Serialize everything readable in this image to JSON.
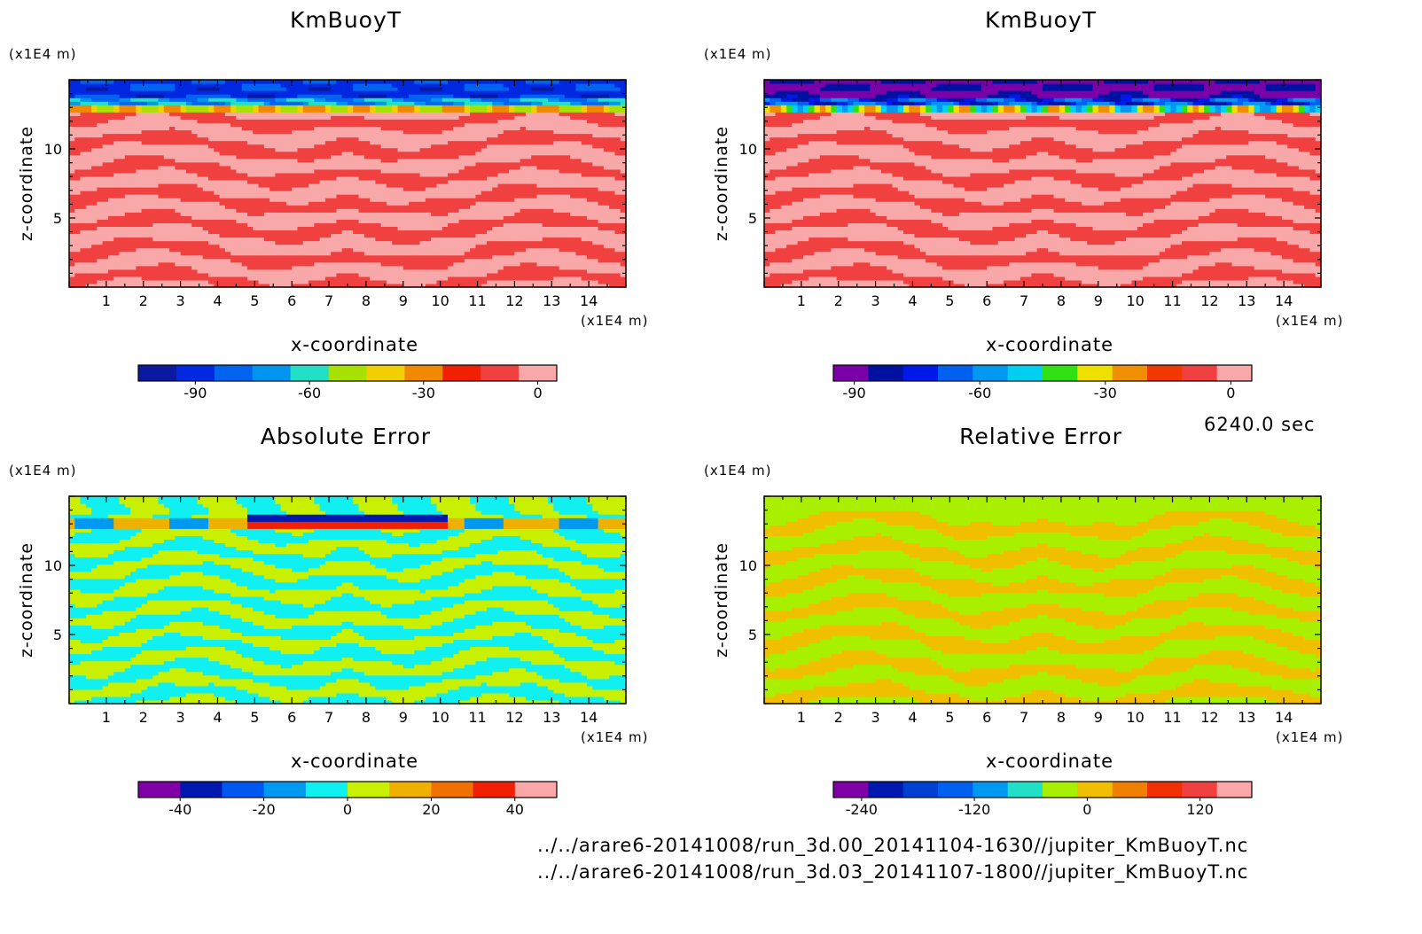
{
  "chart_data": [
    {
      "type": "heatmap",
      "title": "KmBuoyT",
      "xlabel": "x-coordinate",
      "ylabel": "z-coordinate",
      "x_unit": "(x1E4 m)",
      "y_unit": "(x1E4 m)",
      "xlim": [
        0,
        15
      ],
      "ylim": [
        0,
        15
      ],
      "x_ticks": [
        1,
        2,
        3,
        4,
        5,
        6,
        7,
        8,
        9,
        10,
        11,
        12,
        13,
        14
      ],
      "y_ticks": [
        5,
        10
      ],
      "pattern": "model",
      "colorbar": {
        "min": -105,
        "max": 5,
        "colors": [
          "#0a1aa0",
          "#0028e0",
          "#0064f0",
          "#0096f0",
          "#20e0c8",
          "#a8e000",
          "#f0d000",
          "#f08800",
          "#f02000",
          "#f04040",
          "#f8a8a8"
        ],
        "ticks": [
          -90,
          -60,
          -30,
          0
        ]
      }
    },
    {
      "type": "heatmap",
      "title": "KmBuoyT",
      "xlabel": "x-coordinate",
      "ylabel": "z-coordinate",
      "x_unit": "(x1E4 m)",
      "y_unit": "(x1E4 m)",
      "xlim": [
        0,
        15
      ],
      "ylim": [
        0,
        15
      ],
      "x_ticks": [
        1,
        2,
        3,
        4,
        5,
        6,
        7,
        8,
        9,
        10,
        11,
        12,
        13,
        14
      ],
      "y_ticks": [
        5,
        10
      ],
      "pattern": "model",
      "colorbar": {
        "min": -95,
        "max": 5,
        "colors": [
          "#7a00a8",
          "#0010a0",
          "#0018e8",
          "#0060f0",
          "#0098f0",
          "#00d0f0",
          "#30e010",
          "#f0e000",
          "#f09000",
          "#f03800",
          "#f04040",
          "#f8a8a8"
        ],
        "ticks": [
          -90,
          -60,
          -30,
          0
        ]
      }
    },
    {
      "type": "heatmap",
      "title": "Absolute Error",
      "xlabel": "x-coordinate",
      "ylabel": "z-coordinate",
      "x_unit": "(x1E4 m)",
      "y_unit": "(x1E4 m)",
      "xlim": [
        0,
        15
      ],
      "ylim": [
        0,
        15
      ],
      "x_ticks": [
        1,
        2,
        3,
        4,
        5,
        6,
        7,
        8,
        9,
        10,
        11,
        12,
        13,
        14
      ],
      "y_ticks": [
        5,
        10
      ],
      "pattern": "abs",
      "colorbar": {
        "min": -50,
        "max": 50,
        "colors": [
          "#8000a8",
          "#0018b0",
          "#0058f0",
          "#0098f0",
          "#10f0f0",
          "#c8f000",
          "#f0b000",
          "#f07000",
          "#f02000",
          "#f8a8a8"
        ],
        "ticks": [
          -40,
          -20,
          0,
          20,
          40
        ]
      }
    },
    {
      "type": "heatmap",
      "title": "Relative Error",
      "xlabel": "x-coordinate",
      "ylabel": "z-coordinate",
      "x_unit": "(x1E4 m)",
      "y_unit": "(x1E4 m)",
      "xlim": [
        0,
        15
      ],
      "ylim": [
        0,
        15
      ],
      "x_ticks": [
        1,
        2,
        3,
        4,
        5,
        6,
        7,
        8,
        9,
        10,
        11,
        12,
        13,
        14
      ],
      "y_ticks": [
        5,
        10
      ],
      "pattern": "rel",
      "colorbar": {
        "min": -270,
        "max": 175,
        "colors": [
          "#8000a8",
          "#0018b0",
          "#0040d0",
          "#0060f0",
          "#0098f0",
          "#20e0c8",
          "#a8f000",
          "#f0c000",
          "#f08000",
          "#f03000",
          "#f04040",
          "#f8a8a8"
        ],
        "ticks": [
          -240,
          -120,
          0,
          120
        ]
      }
    }
  ],
  "annotations": {
    "time": "6240.0 sec",
    "file1": "../../arare6-20141008/run_3d.00_20141104-1630//jupiter_KmBuoyT.nc",
    "file2": "../../arare6-20141008/run_3d.03_20141107-1800//jupiter_KmBuoyT.nc"
  }
}
